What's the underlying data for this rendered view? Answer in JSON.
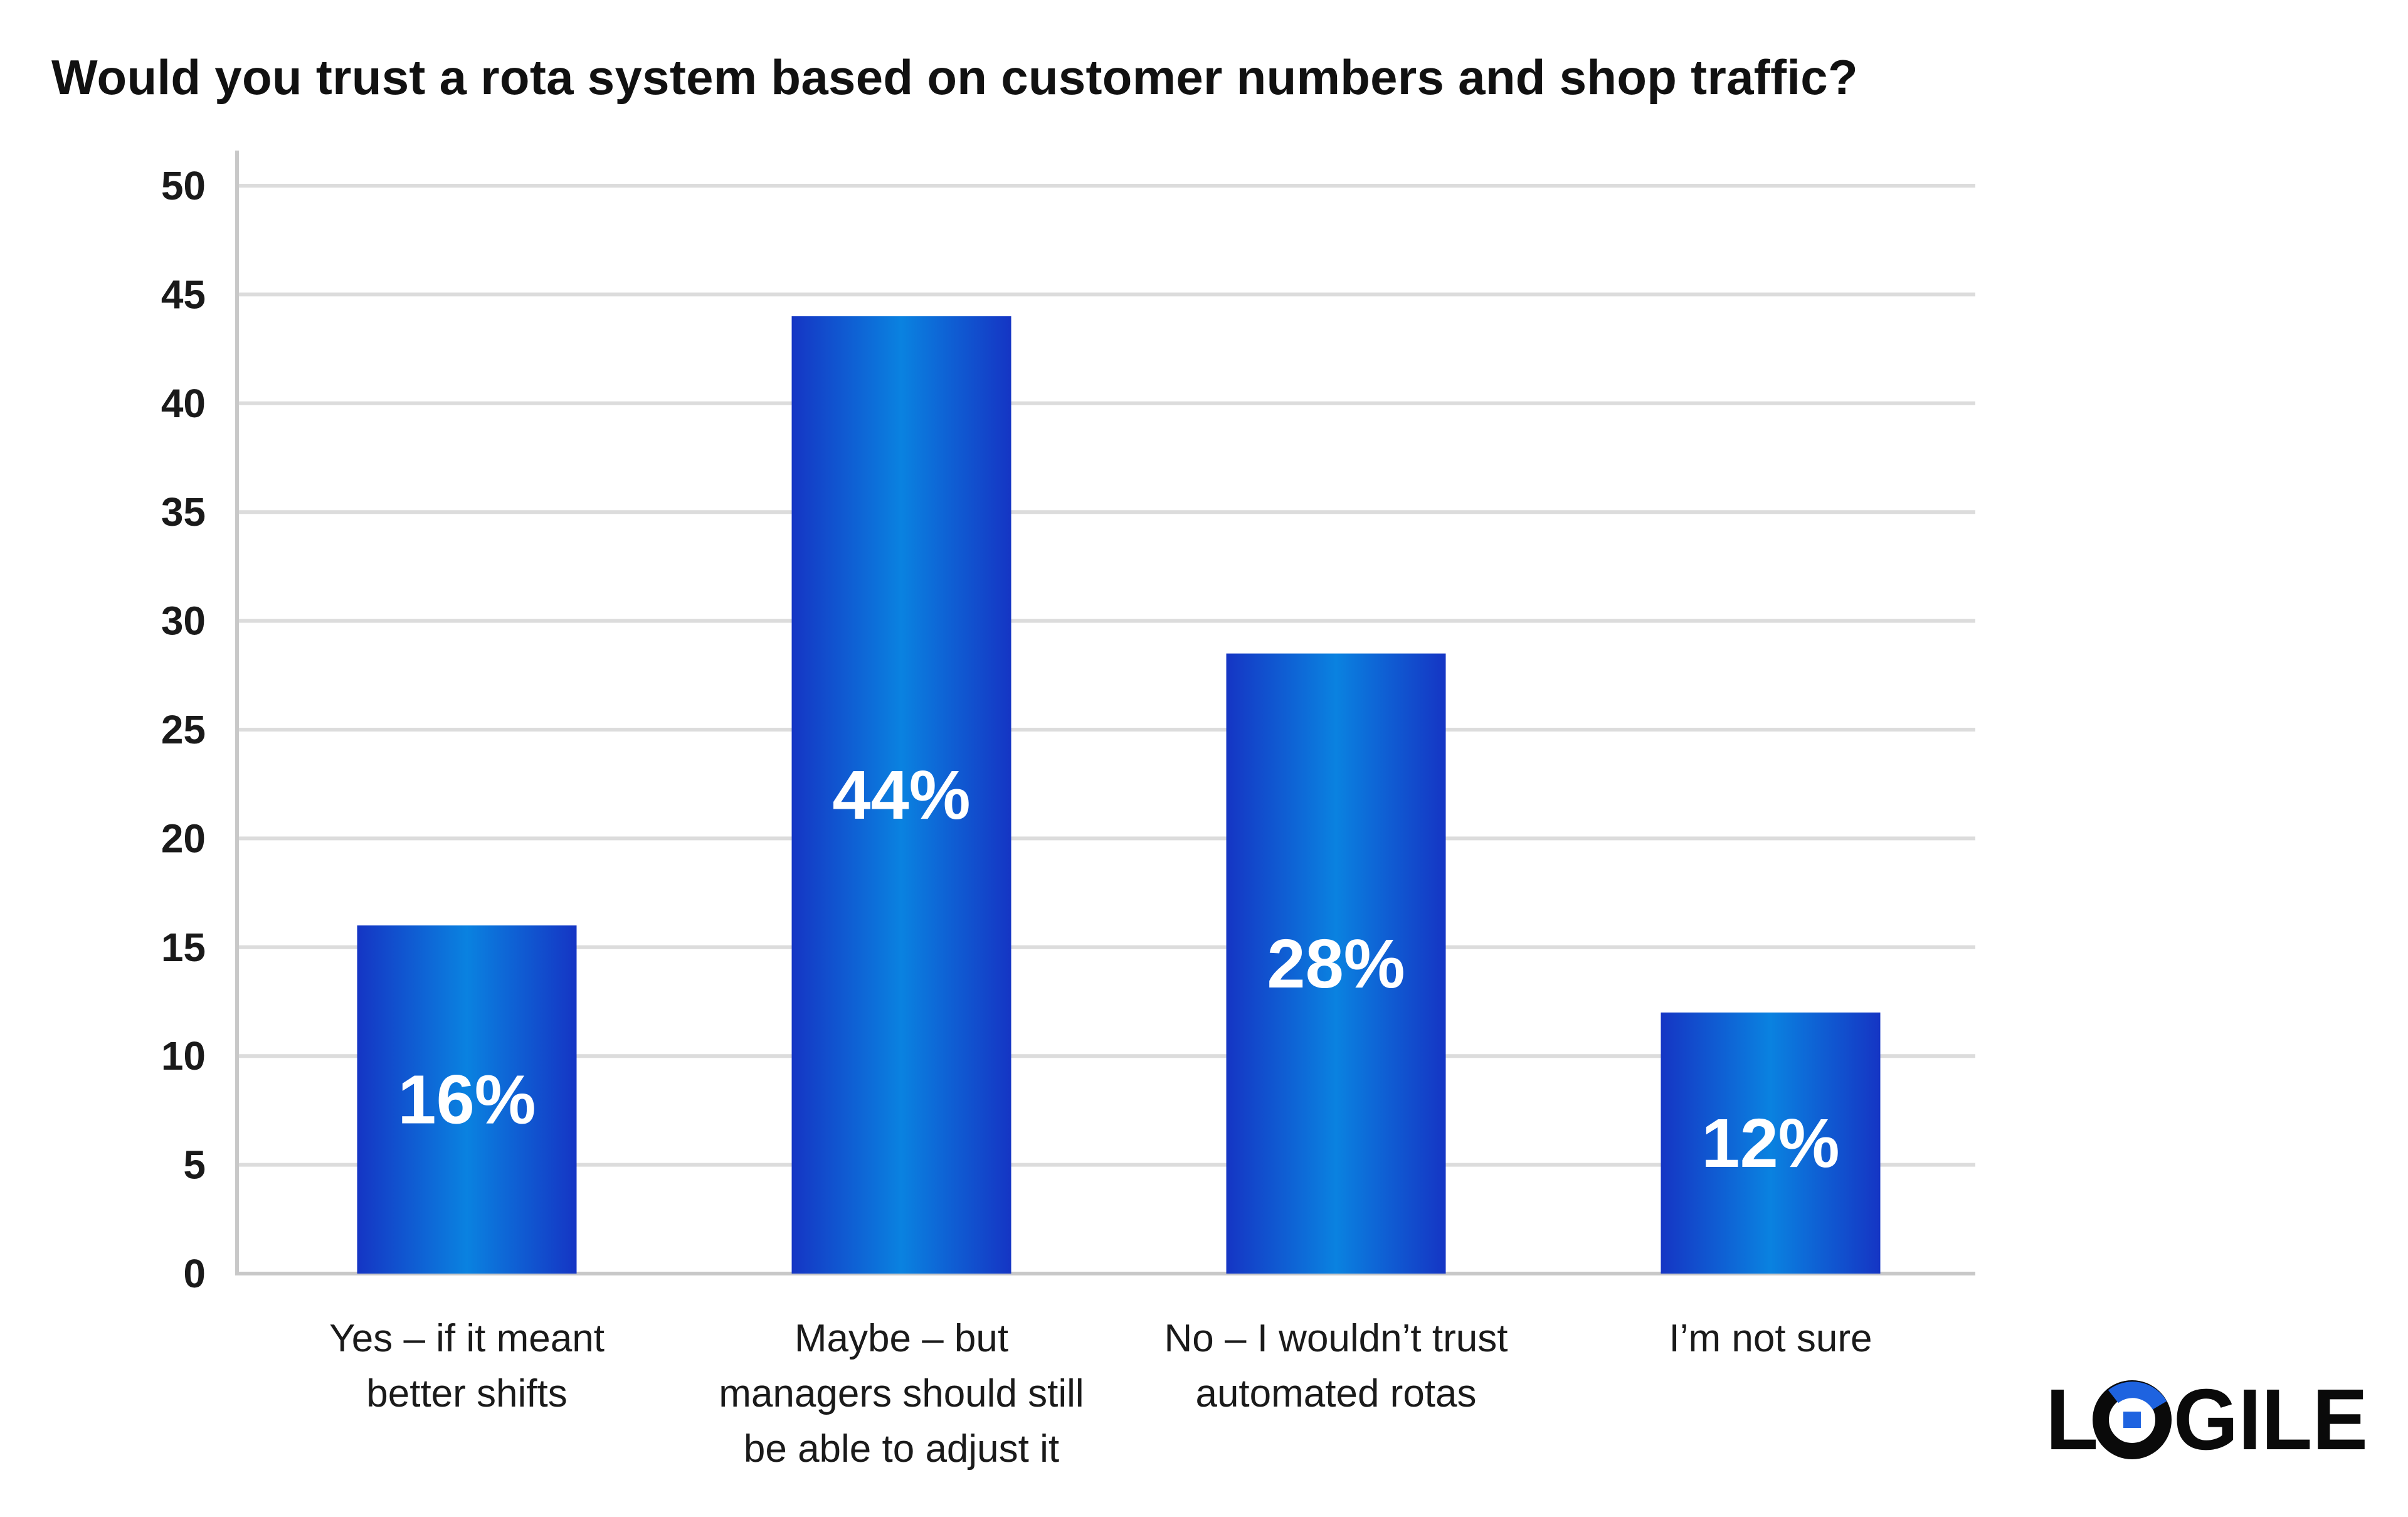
{
  "title": "Would you trust a rota system based on customer numbers and shop traffic?",
  "chart_data": {
    "type": "bar",
    "title": "Would you trust a rota system based on customer numbers and shop traffic?",
    "xlabel": "",
    "ylabel": "",
    "ylim": [
      0,
      50
    ],
    "yticks": [
      0,
      5,
      10,
      15,
      20,
      25,
      30,
      35,
      40,
      45,
      50
    ],
    "grid": true,
    "categories": [
      [
        "Yes – if it meant",
        "better shifts"
      ],
      [
        "Maybe – but",
        "managers should still",
        "be able to adjust it"
      ],
      [
        "No – I wouldn’t trust",
        "automated rotas"
      ],
      [
        "I’m not sure"
      ]
    ],
    "values": [
      16,
      44,
      28.5,
      12
    ],
    "data_labels": [
      "16%",
      "44%",
      "28%",
      "12%"
    ],
    "colors": {
      "bar_edge": "#1535c4",
      "bar_center": "#0a82e0",
      "grid": "#dcdcdc",
      "axis": "#c8c8c8",
      "label_text": "#ffffff"
    }
  },
  "logo": {
    "text_left": "L",
    "text_right": "GILE",
    "color": "#0a0a0a",
    "accent": "#1e63e0"
  }
}
